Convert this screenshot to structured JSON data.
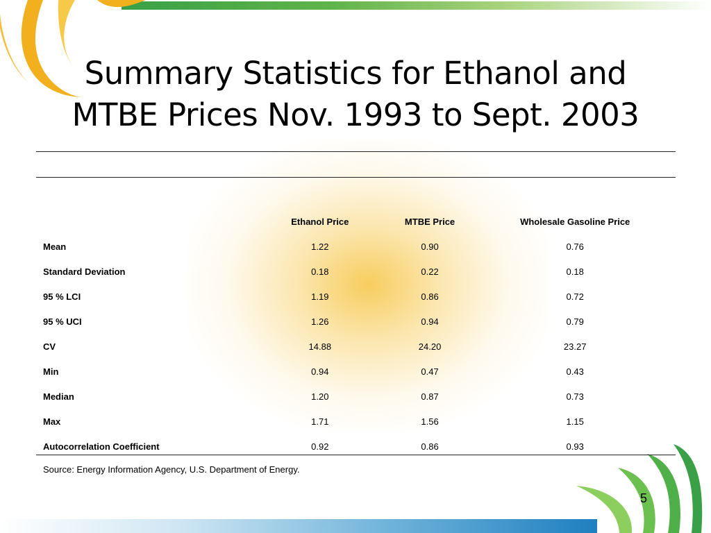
{
  "slide": {
    "title_line1": "Summary Statistics for Ethanol and",
    "title_line2": "MTBE Prices Nov. 1993 to Sept. 2003",
    "page_number": "5"
  },
  "table": {
    "headers": [
      "",
      "Ethanol Price",
      "MTBE Price",
      "Wholesale Gasoline Price"
    ],
    "rows": [
      {
        "label": "Mean",
        "ethanol": "1.22",
        "mtbe": "0.90",
        "gasoline": "0.76"
      },
      {
        "label": "Standard Deviation",
        "ethanol": "0.18",
        "mtbe": "0.22",
        "gasoline": "0.18"
      },
      {
        "label": "95 % LCI",
        "ethanol": "1.19",
        "mtbe": "0.86",
        "gasoline": "0.72"
      },
      {
        "label": "95 % UCI",
        "ethanol": "1.26",
        "mtbe": "0.94",
        "gasoline": "0.79"
      },
      {
        "label": "CV",
        "ethanol": "14.88",
        "mtbe": "24.20",
        "gasoline": "23.27"
      },
      {
        "label": "Min",
        "ethanol": "0.94",
        "mtbe": "0.47",
        "gasoline": "0.43"
      },
      {
        "label": "Median",
        "ethanol": "1.20",
        "mtbe": "0.87",
        "gasoline": "0.73"
      },
      {
        "label": "Max",
        "ethanol": "1.71",
        "mtbe": "1.56",
        "gasoline": "1.15"
      },
      {
        "label": "Autocorrelation Coefficient",
        "ethanol": "0.92",
        "mtbe": "0.86",
        "gasoline": "0.93"
      }
    ]
  },
  "source": "Source:  Energy Information Agency, U.S. Department of Energy.",
  "colors": {
    "accent_green": "#3aa047",
    "accent_yellow": "#f2b01e",
    "accent_blue": "#1f7fc0"
  }
}
